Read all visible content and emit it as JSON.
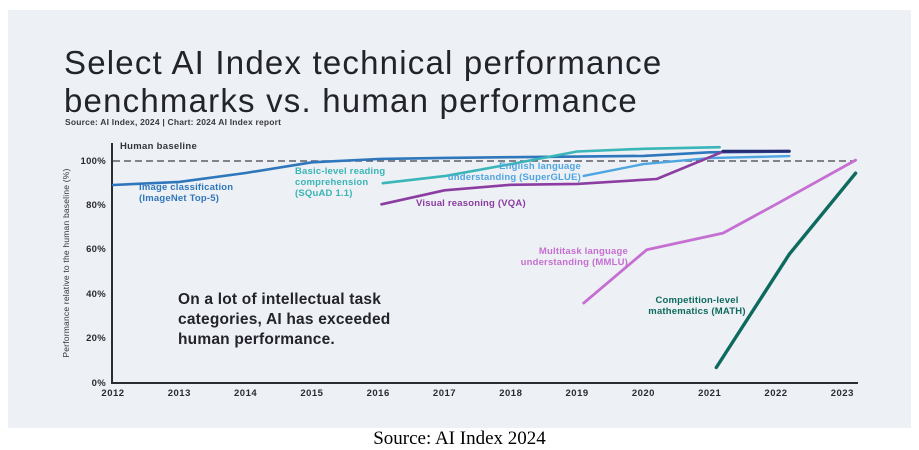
{
  "page": {
    "background": "#ffffff",
    "caption": "Source: AI Index 2024"
  },
  "figure": {
    "title_line1": "Select AI Index technical performance",
    "title_line2": "benchmarks vs. human performance",
    "source_line": "Source: AI Index, 2024 | Chart: 2024 AI Index report",
    "panel_bg": "#edf0f4"
  },
  "chart_data": {
    "type": "line",
    "title": "Select AI Index technical performance benchmarks vs. human performance",
    "xlabel": "",
    "ylabel": "Performance relative to the human baseline (%)",
    "x_ticks": [
      2012,
      2013,
      2014,
      2015,
      2016,
      2017,
      2018,
      2019,
      2020,
      2021,
      2022,
      2023
    ],
    "y_ticks": [
      0,
      20,
      40,
      60,
      80,
      100
    ],
    "y_tick_suffix": "%",
    "xlim": [
      2012,
      2023.3
    ],
    "ylim": [
      0,
      112
    ],
    "grid": false,
    "legend_position": "inline-labels",
    "axis_color": "#2b2b33",
    "human_baseline": {
      "label": "Human baseline",
      "value": 100,
      "line_style": "dashed",
      "color": "#5e5e66"
    },
    "annotation": {
      "text": "On a lot of intellectual task categories, AI has exceeded human performance.",
      "lines": [
        "On a lot of intellectual task",
        "categories, AI has exceeded",
        "human performance."
      ]
    },
    "series": [
      {
        "id": "imagenet",
        "name": "Image classification (ImageNet Top-5)",
        "label_lines": [
          "Image classification",
          "(ImageNet Top-5)"
        ],
        "color": "#2f77bd",
        "width": 2.6,
        "points": [
          [
            2012,
            89.2
          ],
          [
            2013,
            90.6
          ],
          [
            2014,
            94.6
          ],
          [
            2015,
            99.4
          ],
          [
            2016,
            100.9
          ],
          [
            2017,
            101.4
          ],
          [
            2018,
            101.7
          ],
          [
            2019,
            102.0
          ],
          [
            2020,
            102.3
          ],
          [
            2021,
            103.9
          ],
          [
            2022.2,
            104.3
          ]
        ]
      },
      {
        "id": "squad",
        "name": "Basic-level reading comprehension (SQuAD 1.1)",
        "label_lines": [
          "Basic-level reading",
          "comprehension",
          "(SQuAD 1.1)"
        ],
        "color": "#3ab5b8",
        "width": 2.6,
        "points": [
          [
            2016.07,
            90.0
          ],
          [
            2017,
            93.2
          ],
          [
            2018,
            98.6
          ],
          [
            2019,
            104.3
          ],
          [
            2020,
            105.5
          ],
          [
            2021.15,
            106.2
          ]
        ]
      },
      {
        "id": "superglue",
        "name": "English language understanding (SuperGLUE)",
        "label_lines": [
          "English language",
          "understanding (SuperGLUE)"
        ],
        "color": "#4fa5e2",
        "width": 2.4,
        "points": [
          [
            2019.1,
            93.3
          ],
          [
            2020,
            98.6
          ],
          [
            2021,
            101.3
          ],
          [
            2022.2,
            102.2
          ]
        ]
      },
      {
        "id": "vqa",
        "name": "Visual reasoning (VQA)",
        "label_lines": [
          "Visual reasoning (VQA)"
        ],
        "color": "#8b3da1",
        "width": 2.6,
        "points": [
          [
            2016.05,
            80.5
          ],
          [
            2017,
            86.8
          ],
          [
            2018,
            89.3
          ],
          [
            2019,
            89.7
          ],
          [
            2020.2,
            91.9
          ],
          [
            2021.2,
            104.2
          ],
          [
            2022.2,
            104.5
          ]
        ]
      },
      {
        "id": "mmlu",
        "name": "Multitask language understanding (MMLU)",
        "label_lines": [
          "Multitask language",
          "understanding (MMLU)"
        ],
        "color": "#c66fd2",
        "width": 2.8,
        "points": [
          [
            2019.1,
            36.0
          ],
          [
            2020.05,
            60.0
          ],
          [
            2021.2,
            67.5
          ],
          [
            2022,
            80.5
          ],
          [
            2023.2,
            100.4
          ]
        ]
      },
      {
        "id": "math",
        "name": "Competition-level mathematics (MATH)",
        "label_lines": [
          "Competition-level",
          "mathematics (MATH)"
        ],
        "color": "#0e6a5e",
        "width": 3.4,
        "points": [
          [
            2021.1,
            7.0
          ],
          [
            2022.2,
            58.0
          ],
          [
            2023.2,
            94.5
          ]
        ]
      }
    ],
    "overlap_segment": {
      "note": "dark navy segment where ImageNet and VQA lines coincide above baseline",
      "color": "#232d76",
      "width": 3,
      "points": [
        [
          2021.2,
          104.4
        ],
        [
          2022.2,
          104.4
        ]
      ]
    }
  }
}
